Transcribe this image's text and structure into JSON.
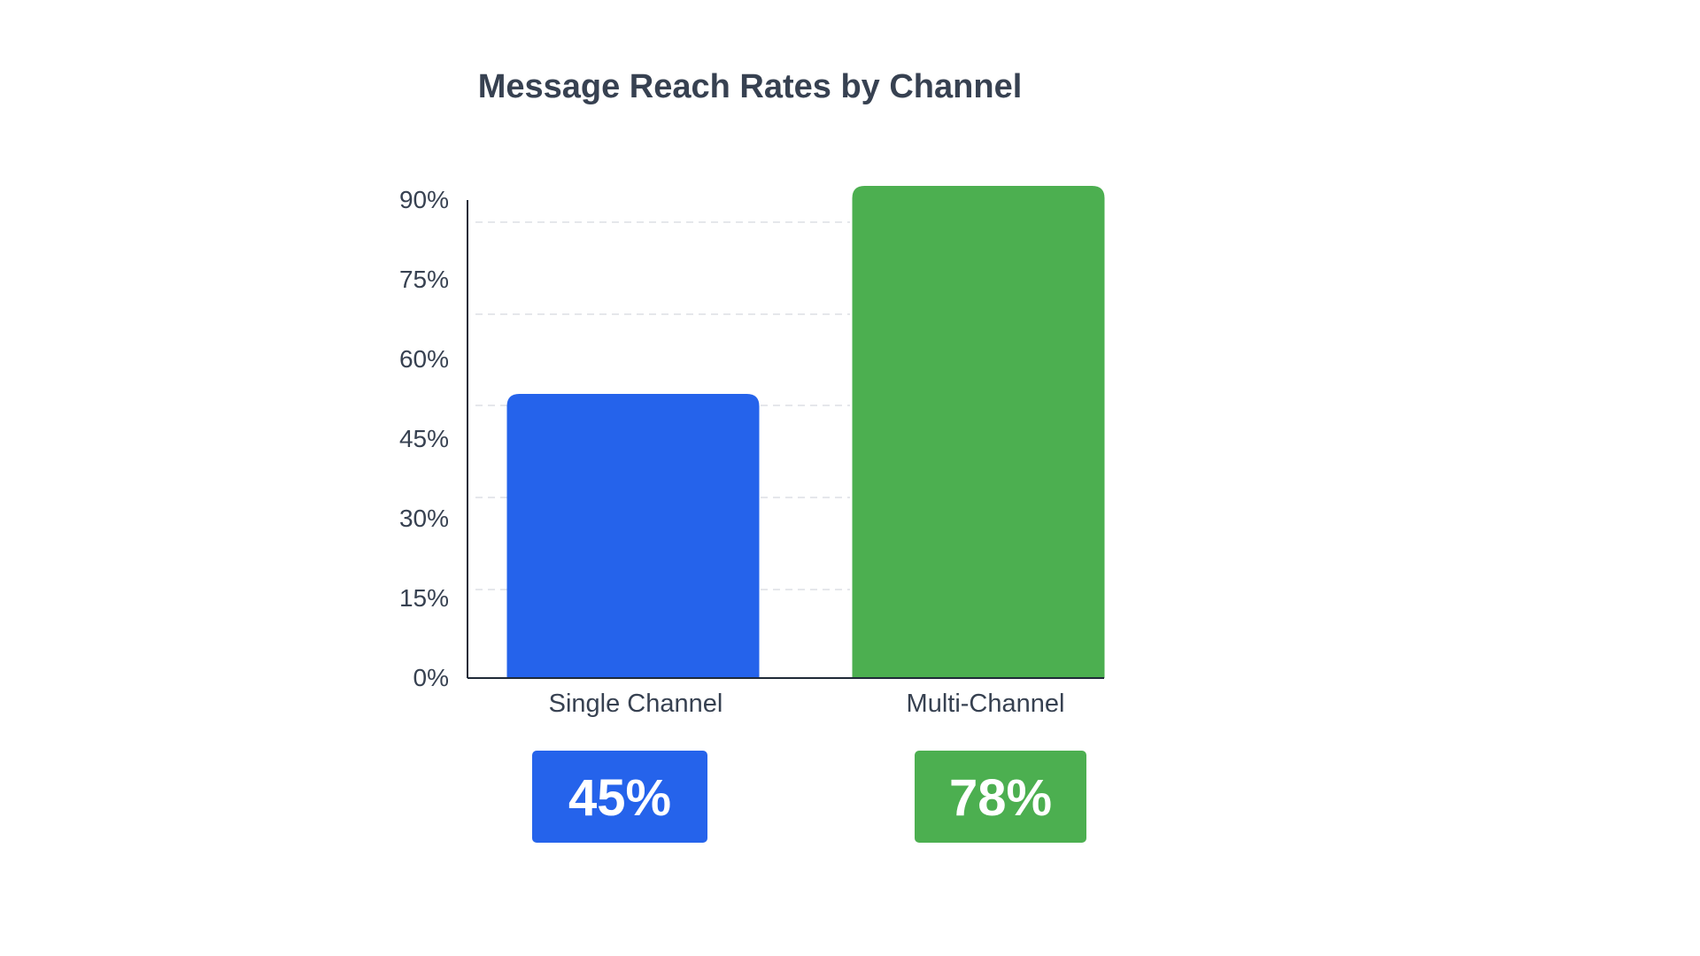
{
  "chart_data": {
    "type": "bar",
    "title": "Message Reach Rates by Channel",
    "xlabel": "",
    "ylabel": "",
    "categories": [
      "Single Channel",
      "Multi-Channel"
    ],
    "values": [
      45,
      78
    ],
    "ylim": [
      0,
      90
    ],
    "yticks": [
      0,
      15,
      30,
      45,
      60,
      75,
      90
    ],
    "ytick_labels": [
      "0%",
      "15%",
      "30%",
      "45%",
      "60%",
      "75%",
      "90%"
    ],
    "value_badges": [
      "45%",
      "78%"
    ],
    "grid": true,
    "grid_style": "dashed",
    "legend": "none"
  },
  "colors": {
    "single_channel": "#2563EB",
    "multi_channel": "#4CAF50",
    "title": "#374151",
    "axis": "#1F2937",
    "grid": "#E5E7EB",
    "tick_label": "#374151",
    "badge_text": "#FFFFFF"
  }
}
